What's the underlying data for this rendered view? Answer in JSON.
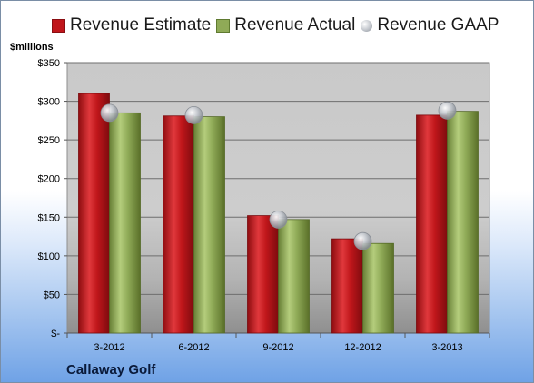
{
  "chart_data": {
    "type": "bar",
    "categories": [
      "3-2012",
      "6-2012",
      "9-2012",
      "12-2012",
      "3-2013"
    ],
    "series": [
      {
        "name": "Revenue Estimate",
        "kind": "bar",
        "color": "#c0161b",
        "values": [
          310,
          281,
          152,
          122,
          282
        ]
      },
      {
        "name": "Revenue Actual",
        "kind": "bar",
        "color": "#8faa57",
        "values": [
          285,
          280,
          147,
          116,
          287
        ]
      },
      {
        "name": "Revenue GAAP",
        "kind": "marker",
        "color": "#b9bec6",
        "values": [
          285,
          282,
          147,
          119,
          288
        ]
      }
    ],
    "ylabel": "$millions",
    "ylim": [
      0,
      350
    ],
    "yticks": [
      0,
      50,
      100,
      150,
      200,
      250,
      300,
      350
    ],
    "ytick_labels": [
      "$-",
      "$50",
      "$100",
      "$150",
      "$200",
      "$250",
      "$300",
      "$350"
    ],
    "grid": true,
    "legend_position": "top"
  },
  "footer": {
    "company": "Callaway Golf"
  }
}
